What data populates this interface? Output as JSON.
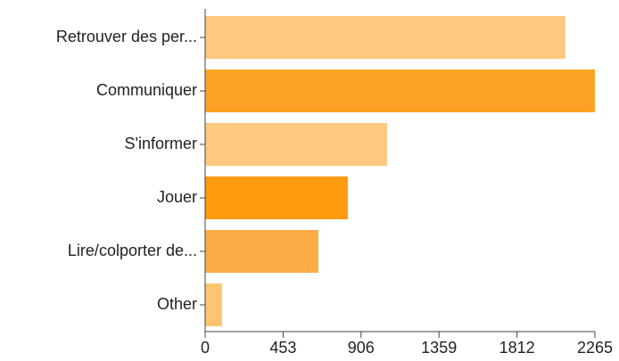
{
  "chart_data": {
    "type": "bar",
    "orientation": "horizontal",
    "categories": [
      "Retrouver des per...",
      "Communiquer",
      "S'informer",
      "Jouer",
      "Lire/colporter de...",
      "Other"
    ],
    "values": [
      2094,
      2265,
      1057,
      829,
      658,
      98
    ],
    "colors": [
      "#fec97f",
      "#fca225",
      "#fec97f",
      "#fd9a0d",
      "#fcac45",
      "#fdc56f"
    ],
    "xlim": [
      0,
      2265
    ],
    "xticks": [
      0,
      453,
      906,
      1359,
      1812,
      2265
    ],
    "grid": false
  }
}
